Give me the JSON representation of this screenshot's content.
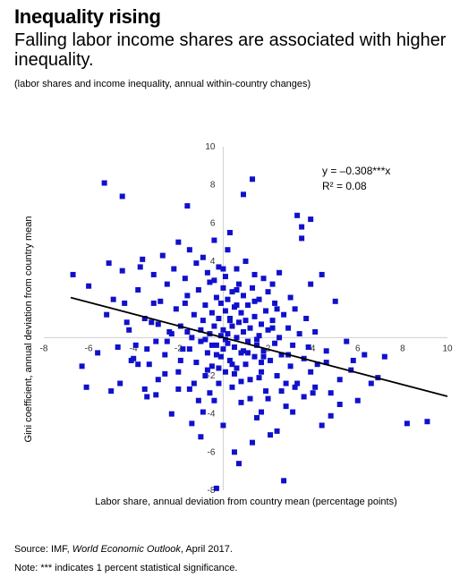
{
  "header": {
    "title": "Inequality rising",
    "subtitle": "Falling labor income shares are associated with higher inequality.",
    "note": "(labor shares and income inequality, annual within-country changes)"
  },
  "footer": {
    "source_prefix": "Source: IMF, ",
    "source_pub": "World Economic Outlook",
    "source_suffix": ", April 2017.",
    "note": "Note: *** indicates 1 percent statistical significance."
  },
  "chart_data": {
    "type": "scatter",
    "xlabel": "Labor share, annual deviation from country mean (percentage points)",
    "ylabel": "Gini coefficient, annual deviation from country mean",
    "xlim": [
      -8,
      10
    ],
    "ylim": [
      -8,
      10
    ],
    "xticks": [
      -8,
      -6,
      -4,
      -2,
      2,
      4,
      6,
      8,
      10
    ],
    "yticks": [
      10,
      8,
      6,
      4,
      -2,
      -4,
      -6,
      -8
    ],
    "tick_labels_x": [
      "-8",
      "-6",
      "-4",
      "-2",
      "2",
      "4",
      "6",
      "8",
      "10"
    ],
    "tick_labels_y": [
      "10",
      "8",
      "6",
      "4",
      "-2",
      "-4",
      "-6",
      "-8"
    ],
    "grid": false,
    "equation": "y = –0.308***x",
    "r2": "R² = 0.08",
    "marker_color": "#1010cc",
    "line_color": "#000000",
    "trendline": {
      "slope": -0.308,
      "intercept": 0.0,
      "x_range": [
        -6.8,
        10
      ]
    },
    "points": [
      [
        -6.7,
        3.3
      ],
      [
        -6.3,
        -1.5
      ],
      [
        -6,
        2.7
      ],
      [
        -5.6,
        -0.8
      ],
      [
        -5.2,
        1.2
      ],
      [
        -5.1,
        3.9
      ],
      [
        -4.9,
        2
      ],
      [
        -4.7,
        -0.5
      ],
      [
        -4.6,
        -2.4
      ],
      [
        -4.5,
        3.5
      ],
      [
        -4.4,
        1.8
      ],
      [
        -4.2,
        0.4
      ],
      [
        -4,
        -1.1
      ],
      [
        -3.9,
        -0.4
      ],
      [
        -3.8,
        2.5
      ],
      [
        -3.7,
        3.7
      ],
      [
        -3.6,
        4.1
      ],
      [
        -3.5,
        1
      ],
      [
        -3.4,
        -3.1
      ],
      [
        -3.3,
        -1.4
      ],
      [
        -3.2,
        0.8
      ],
      [
        -3.1,
        3.3
      ],
      [
        -3,
        -0.2
      ],
      [
        -2.9,
        -2.2
      ],
      [
        -2.8,
        1.9
      ],
      [
        -2.7,
        4.3
      ],
      [
        -2.6,
        -0.9
      ],
      [
        -2.5,
        2.8
      ],
      [
        -2.4,
        0.3
      ],
      [
        -2.3,
        -4
      ],
      [
        -2.2,
        3.6
      ],
      [
        -2.1,
        1.5
      ],
      [
        -2,
        -1.8
      ],
      [
        -2,
        5
      ],
      [
        -1.9,
        0.6
      ],
      [
        -1.8,
        -0.6
      ],
      [
        -1.7,
        3.1
      ],
      [
        -1.6,
        2.2
      ],
      [
        -1.5,
        -2.7
      ],
      [
        -1.5,
        4.6
      ],
      [
        -1.4,
        0
      ],
      [
        -1.3,
        1.2
      ],
      [
        -1.2,
        -1.3
      ],
      [
        -1.2,
        3.9
      ],
      [
        -1.1,
        2.5
      ],
      [
        -1,
        -0.2
      ],
      [
        -1,
        -5.2
      ],
      [
        -0.9,
        0.9
      ],
      [
        -0.9,
        4.2
      ],
      [
        -0.8,
        -2
      ],
      [
        -0.8,
        1.7
      ],
      [
        -0.7,
        3.4
      ],
      [
        -0.7,
        -0.8
      ],
      [
        -0.6,
        0.2
      ],
      [
        -0.6,
        2.9
      ],
      [
        -0.5,
        -1.5
      ],
      [
        -0.5,
        1.3
      ],
      [
        -0.4,
        5.1
      ],
      [
        -0.4,
        -3.3
      ],
      [
        -0.4,
        0.6
      ],
      [
        -0.3,
        2.1
      ],
      [
        -0.3,
        -0.4
      ],
      [
        -0.2,
        1
      ],
      [
        -0.2,
        3.7
      ],
      [
        -0.2,
        -2.4
      ],
      [
        -0.1,
        0.1
      ],
      [
        -0.1,
        1.8
      ],
      [
        -0.1,
        -1
      ],
      [
        0,
        2.6
      ],
      [
        0,
        -0.6
      ],
      [
        0,
        0.4
      ],
      [
        0,
        -4.6
      ],
      [
        0.1,
        1.4
      ],
      [
        0.1,
        -1.8
      ],
      [
        0.1,
        3.2
      ],
      [
        0.2,
        0.2
      ],
      [
        0.2,
        -0.3
      ],
      [
        0.2,
        2
      ],
      [
        0.3,
        -1.2
      ],
      [
        0.3,
        1
      ],
      [
        0.3,
        5.5
      ],
      [
        0.4,
        -2.6
      ],
      [
        0.4,
        0.6
      ],
      [
        0.4,
        2.4
      ],
      [
        0.5,
        -0.5
      ],
      [
        0.5,
        1.6
      ],
      [
        0.5,
        -6
      ],
      [
        0.6,
        0
      ],
      [
        0.6,
        3.6
      ],
      [
        0.6,
        -1.6
      ],
      [
        0.7,
        0.8
      ],
      [
        0.7,
        2.8
      ],
      [
        0.8,
        -0.8
      ],
      [
        0.8,
        1.3
      ],
      [
        0.8,
        -3.4
      ],
      [
        0.9,
        0.3
      ],
      [
        0.9,
        2.2
      ],
      [
        1,
        -1.4
      ],
      [
        1,
        0.9
      ],
      [
        1,
        4
      ],
      [
        1.1,
        -0.2
      ],
      [
        1.1,
        1.7
      ],
      [
        1.2,
        -2.2
      ],
      [
        1.2,
        0.5
      ],
      [
        1.3,
        8.3
      ],
      [
        1.3,
        2.6
      ],
      [
        1.4,
        -1
      ],
      [
        1.4,
        1.1
      ],
      [
        1.5,
        -0.4
      ],
      [
        1.5,
        -4.2
      ],
      [
        1.6,
        0.1
      ],
      [
        1.6,
        2
      ],
      [
        1.7,
        -1.8
      ],
      [
        1.7,
        0.7
      ],
      [
        1.8,
        3.1
      ],
      [
        1.8,
        -0.7
      ],
      [
        1.9,
        1.4
      ],
      [
        1.9,
        -2.8
      ],
      [
        2,
        0.4
      ],
      [
        2,
        2.4
      ],
      [
        2.1,
        -1.2
      ],
      [
        2.1,
        -5.1
      ],
      [
        2.2,
        0.9
      ],
      [
        2.3,
        -0.3
      ],
      [
        2.3,
        1.8
      ],
      [
        2.4,
        -2
      ],
      [
        2.5,
        0
      ],
      [
        2.5,
        3.4
      ],
      [
        2.6,
        -0.9
      ],
      [
        2.7,
        1.2
      ],
      [
        2.8,
        -3.6
      ],
      [
        2.9,
        0.5
      ],
      [
        3,
        -1.5
      ],
      [
        3,
        2.1
      ],
      [
        3.1,
        -0.4
      ],
      [
        3.2,
        1.5
      ],
      [
        3.3,
        -2.4
      ],
      [
        3.4,
        0.2
      ],
      [
        3.5,
        5.8
      ],
      [
        3.6,
        -1.1
      ],
      [
        3.7,
        1
      ],
      [
        3.8,
        -0.5
      ],
      [
        3.9,
        2.8
      ],
      [
        4,
        -2.9
      ],
      [
        4.1,
        0.3
      ],
      [
        4.2,
        -1.4
      ],
      [
        4.4,
        3.3
      ],
      [
        4.6,
        -0.7
      ],
      [
        4.8,
        -4.1
      ],
      [
        5,
        1.9
      ],
      [
        5.2,
        -2.2
      ],
      [
        5.5,
        -0.2
      ],
      [
        5.7,
        -1.7
      ],
      [
        6,
        -3.3
      ],
      [
        6.3,
        -0.9
      ],
      [
        6.6,
        -2.4
      ],
      [
        6.9,
        -2.1
      ],
      [
        7.2,
        -1
      ],
      [
        8.2,
        -4.5
      ],
      [
        9.1,
        -4.4
      ],
      [
        -5.3,
        8.1
      ],
      [
        -4.5,
        7.4
      ],
      [
        -1.6,
        6.9
      ],
      [
        0.9,
        7.5
      ],
      [
        3.3,
        6.4
      ],
      [
        3.9,
        6.2
      ],
      [
        3.5,
        5.2
      ],
      [
        -6.1,
        -2.6
      ],
      [
        -1.4,
        -4.5
      ],
      [
        -0.9,
        -3.9
      ],
      [
        0.7,
        -6.6
      ],
      [
        1.2,
        -3.2
      ],
      [
        2.4,
        -4.9
      ],
      [
        2.7,
        -7.5
      ],
      [
        4.4,
        -4.6
      ],
      [
        5.2,
        -3.5
      ],
      [
        5.8,
        -1.2
      ],
      [
        -3,
        -3
      ],
      [
        -2,
        -2.7
      ],
      [
        -0.3,
        -7.9
      ],
      [
        1.7,
        -3.9
      ],
      [
        2.8,
        -2.4
      ],
      [
        3.6,
        -3.1
      ],
      [
        -5,
        -2.8
      ],
      [
        -3.5,
        -2.7
      ],
      [
        1.3,
        -5.5
      ],
      [
        -1.7,
        1.8
      ],
      [
        0.9,
        -0.7
      ],
      [
        -2.9,
        0.7
      ],
      [
        0.6,
        1.7
      ],
      [
        -1,
        0.4
      ],
      [
        1.5,
        -0.1
      ],
      [
        2.2,
        0.5
      ],
      [
        -0.5,
        -0.4
      ],
      [
        0.1,
        -0.1
      ],
      [
        1.8,
        -1
      ],
      [
        -2.5,
        -0.2
      ],
      [
        -1.5,
        -0.6
      ],
      [
        0.4,
        -1.4
      ],
      [
        1.1,
        -0.8
      ],
      [
        -3.8,
        -1.4
      ],
      [
        -4.3,
        0.8
      ],
      [
        -3.1,
        1.8
      ],
      [
        -2.3,
        0.2
      ],
      [
        0.2,
        4.6
      ],
      [
        -0.6,
        -2.9
      ],
      [
        3.2,
        -2.6
      ],
      [
        2.2,
        2.8
      ],
      [
        1.4,
        3.3
      ],
      [
        -0.7,
        -1.7
      ],
      [
        -1.3,
        -2.4
      ],
      [
        0,
        3.6
      ],
      [
        0.8,
        -2.3
      ],
      [
        1.6,
        -2.1
      ],
      [
        2.6,
        -2.8
      ],
      [
        3.9,
        -1.8
      ],
      [
        4.6,
        -1.3
      ],
      [
        -1.9,
        -1.2
      ],
      [
        -0.2,
        -1.6
      ],
      [
        0.5,
        -1.9
      ],
      [
        -2.6,
        -1.9
      ],
      [
        -3.4,
        -0.6
      ],
      [
        -4.1,
        -1.2
      ],
      [
        -1.1,
        -3.3
      ],
      [
        2,
        -3.2
      ],
      [
        3.1,
        -3.9
      ],
      [
        4.1,
        -2.6
      ],
      [
        4.8,
        -2.9
      ],
      [
        -0.4,
        3
      ],
      [
        0.6,
        2.5
      ],
      [
        1.4,
        1.9
      ],
      [
        2.4,
        1.5
      ],
      [
        -0.8,
        -0.1
      ],
      [
        -1.6,
        0.3
      ],
      [
        0.3,
        0.9
      ],
      [
        -0.3,
        -0.9
      ],
      [
        1.7,
        -1.3
      ],
      [
        2.9,
        -0.9
      ]
    ]
  }
}
